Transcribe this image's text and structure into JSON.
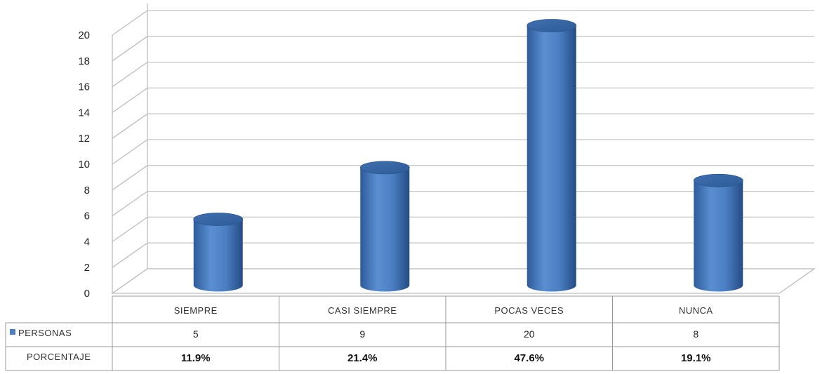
{
  "chart_data": {
    "type": "bar",
    "title": "",
    "xlabel": "",
    "ylabel": "",
    "ylim": [
      0,
      20
    ],
    "yticks": [
      0,
      2,
      4,
      6,
      8,
      10,
      12,
      14,
      16,
      18,
      20
    ],
    "categories": [
      "SIEMPRE",
      "CASI SIEMPRE",
      "POCAS VECES",
      "NUNCA"
    ],
    "series": [
      {
        "name": "PERSONAS",
        "values": [
          5,
          9,
          20,
          8
        ],
        "color": "#4a7ebf"
      }
    ],
    "table": {
      "rows": [
        {
          "label": "PERSONAS",
          "cells": [
            "5",
            "9",
            "20",
            "8"
          ],
          "has_legend_key": true
        },
        {
          "label": "PORCENTAJE",
          "cells": [
            "11.9%",
            "21.4%",
            "47.6%",
            "19.1%"
          ],
          "has_legend_key": false
        }
      ]
    },
    "grid": true,
    "style": "3d-cylinder",
    "legend": "data-table"
  }
}
